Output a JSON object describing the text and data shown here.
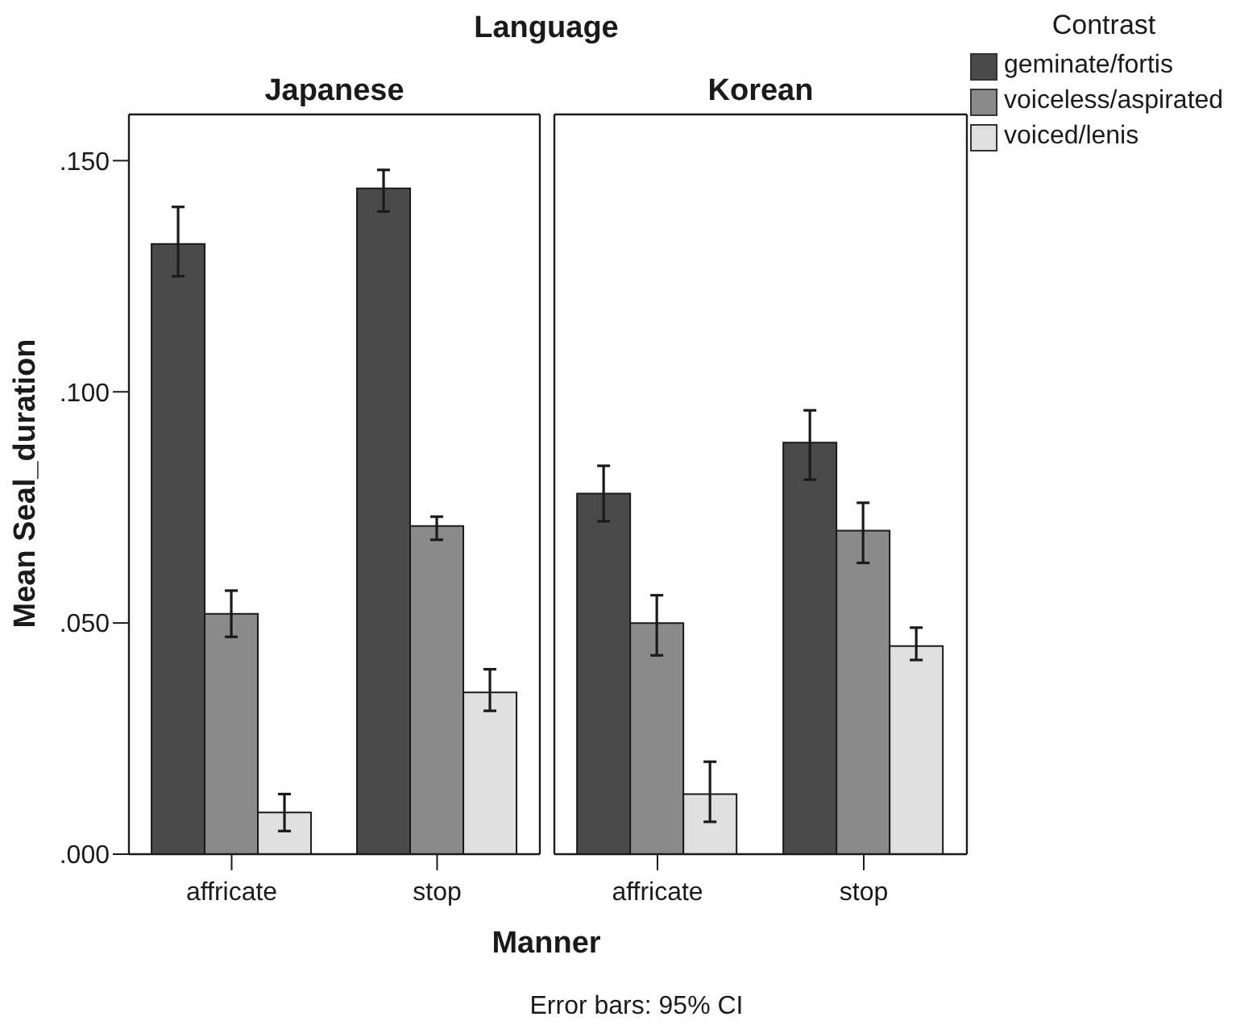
{
  "chart_data": [
    {
      "type": "bar",
      "title": "Japanese",
      "xlabel": "Manner",
      "ylabel": "Mean Seal_duration",
      "annotations": [
        "Language",
        "Error bars: 95% CI"
      ],
      "categories": [
        "affricate",
        "stop"
      ],
      "series": [
        {
          "color": "#4a4a4a",
          "values": [
            0.132,
            0.144
          ],
          "errors": [
            [
              0.125,
              0.14
            ],
            [
              0.139,
              0.148
            ]
          ]
        },
        {
          "color": "#8a8a8a",
          "values": [
            0.052,
            0.071
          ],
          "errors": [
            [
              0.047,
              0.057
            ],
            [
              0.068,
              0.073
            ]
          ]
        },
        {
          "color": "#e0e0e0",
          "values": [
            0.009,
            0.035
          ],
          "errors": [
            [
              0.005,
              0.013
            ],
            [
              0.031,
              0.04
            ]
          ]
        }
      ],
      "ylim": [
        0,
        0.16
      ],
      "yticks": [
        {
          "value": 0,
          "label": ".000"
        },
        {
          "value": 0.05,
          "label": ".050"
        },
        {
          "value": 0.1,
          "label": ".100"
        },
        {
          "value": 0.15,
          "label": ".150"
        }
      ]
    },
    {
      "type": "bar",
      "title": "Korean",
      "legend_title": "Contrast",
      "legend": "top right",
      "tick_labels": "x",
      "categories": [
        "affricate",
        "stop"
      ],
      "series": [
        {
          "name": "geminate/fortis",
          "color": "#4a4a4a",
          "values": [
            0.078,
            0.089
          ],
          "errors": [
            [
              0.072,
              0.084
            ],
            [
              0.081,
              0.096
            ]
          ]
        },
        {
          "name": "voiceless/aspirated",
          "color": "#8a8a8a",
          "values": [
            0.05,
            0.07
          ],
          "errors": [
            [
              0.043,
              0.056
            ],
            [
              0.063,
              0.076
            ]
          ]
        },
        {
          "name": "voiced/lenis",
          "color": "#e0e0e0",
          "values": [
            0.013,
            0.045
          ],
          "errors": [
            [
              0.007,
              0.02
            ],
            [
              0.042,
              0.049
            ]
          ]
        }
      ],
      "ylim": [
        0,
        0.16
      ]
    }
  ]
}
